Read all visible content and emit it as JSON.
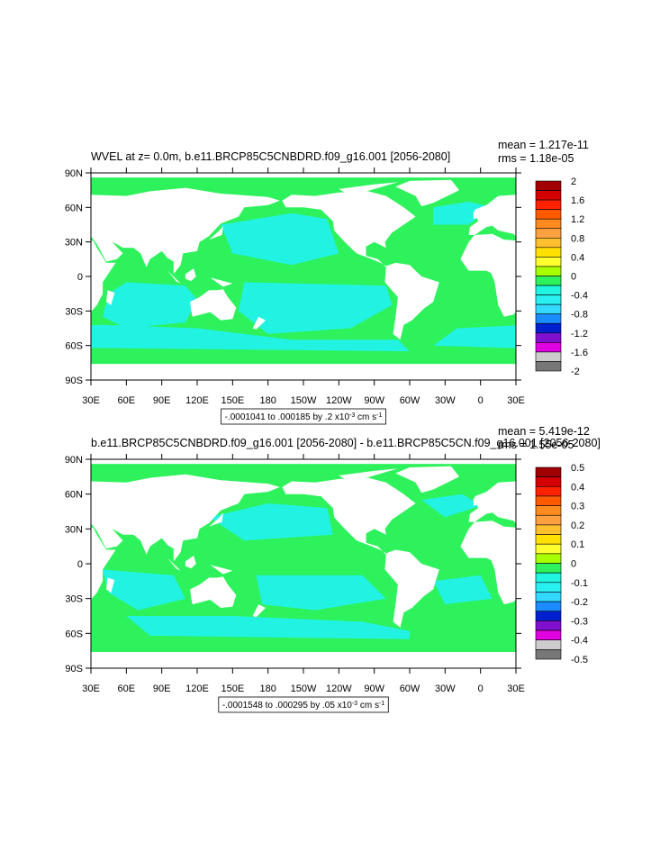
{
  "lat_labels": [
    "90N",
    "60N",
    "30N",
    "0",
    "30S",
    "60S",
    "90S"
  ],
  "lon_labels": [
    "30E",
    "60E",
    "90E",
    "120E",
    "150E",
    "180",
    "150W",
    "120W",
    "90W",
    "60W",
    "30W",
    "0",
    "30E"
  ],
  "panels": [
    {
      "title": "WVEL at z=   0.0m, b.e11.BRCP85C5CNBDRD.f09_g16.001 [2056-2080]",
      "mean": "mean = 1.217e-11",
      "rms": "rms = 1.18e-05",
      "range_note": {
        "text": "-.0001041 to .000185 by .2 x10",
        "exponent": "-3",
        "unit": " cm s",
        "unit_exponent": "-1"
      },
      "colorbar_labels": [
        "2",
        "1.6",
        "1.2",
        "0.8",
        "0.4",
        "0",
        "-0.4",
        "-0.8",
        "-1.2",
        "-1.6",
        "-2"
      ]
    },
    {
      "title": "b.e11.BRCP85C5CNBDRD.f09_g16.001 [2056-2080] - b.e11.BRCP85C5CN.f09_g16.001 [2056-2080]",
      "mean": "mean = 5.419e-12",
      "rms": "rms = 1.55e-05",
      "range_note": {
        "text": "-.0001548 to .000295 by .05 x10",
        "exponent": "-3",
        "unit": " cm s",
        "unit_exponent": "-1"
      },
      "colorbar_labels": [
        "0.5",
        "0.4",
        "0.3",
        "0.2",
        "0.1",
        "0",
        "-0.1",
        "-0.2",
        "-0.3",
        "-0.4",
        "-0.5"
      ]
    }
  ]
}
